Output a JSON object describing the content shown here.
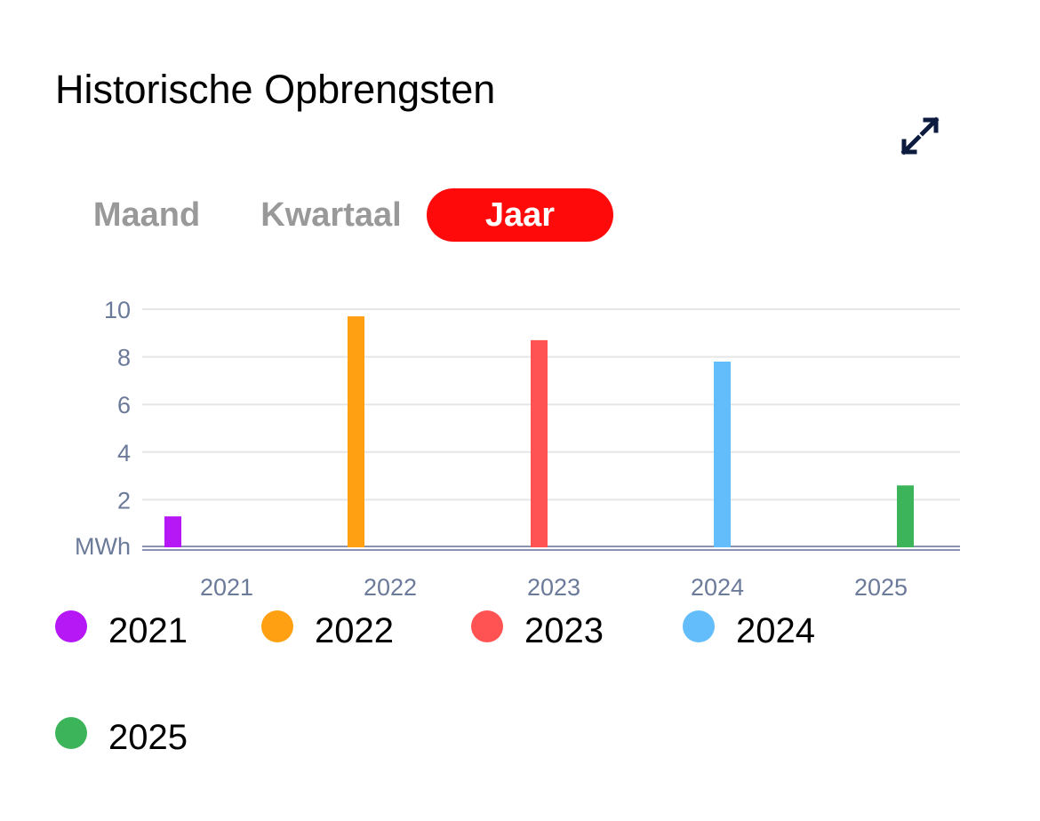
{
  "header": {
    "title": "Historische Opbrengsten",
    "expand_icon": "expand-arrows-icon",
    "expand_icon_color": "#0d1b3e"
  },
  "tabs": [
    {
      "label": "Maand",
      "active": false
    },
    {
      "label": "Kwartaal",
      "active": false
    },
    {
      "label": "Jaar",
      "active": true
    }
  ],
  "colors": {
    "active_tab_bg": "#ff0a0a",
    "inactive_tab_text": "#999999",
    "axis_text": "#6b7a99",
    "grid": "#e6e6e6",
    "baseline": "#8a93b0"
  },
  "chart_data": {
    "type": "bar",
    "categories": [
      "2021",
      "2022",
      "2023",
      "2024",
      "2025"
    ],
    "series": [
      {
        "name": "2021",
        "color": "#b517f5",
        "values": [
          1.3,
          0,
          0,
          0,
          0
        ]
      },
      {
        "name": "2022",
        "color": "#ff9f12",
        "values": [
          0,
          9.7,
          0,
          0,
          0
        ]
      },
      {
        "name": "2023",
        "color": "#ff5252",
        "values": [
          0,
          0,
          8.7,
          0,
          0
        ]
      },
      {
        "name": "2024",
        "color": "#63bdfa",
        "values": [
          0,
          0,
          0,
          7.8,
          0
        ]
      },
      {
        "name": "2025",
        "color": "#3cb55a",
        "values": [
          0,
          0,
          0,
          0,
          2.6
        ]
      }
    ],
    "y_ticks": [
      "2",
      "4",
      "6",
      "8",
      "10"
    ],
    "ylabel": "MWh",
    "ylim": [
      0,
      10
    ],
    "grid": true,
    "legend_position": "bottom"
  }
}
